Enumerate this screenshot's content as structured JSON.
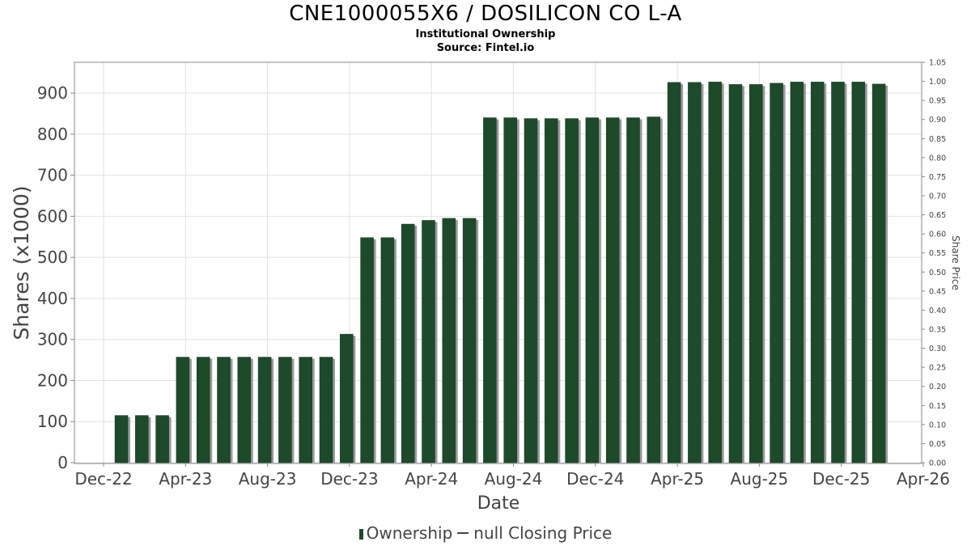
{
  "header": {
    "title": "CNE1000055X6 / DOSILICON CO L-A",
    "subtitle": "Institutional Ownership",
    "source": "Source: Fintel.io"
  },
  "legend": {
    "ownership_label": "Ownership",
    "price_label": "null Closing Price"
  },
  "chart_data": {
    "type": "bar",
    "title": "CNE1000055X6 / DOSILICON CO L-A",
    "xlabel": "Date",
    "ylabel": "Shares (x1000)",
    "y2label": "Share Price",
    "ylim": [
      0,
      975
    ],
    "y2lim": [
      0,
      1.05
    ],
    "yticks": [
      "0",
      "100",
      "200",
      "300",
      "400",
      "500",
      "600",
      "700",
      "800",
      "900"
    ],
    "y2ticks": [
      "0.00",
      "0.05",
      "0.10",
      "0.15",
      "0.20",
      "0.25",
      "0.30",
      "0.35",
      "0.40",
      "0.45",
      "0.50",
      "0.55",
      "0.60",
      "0.65",
      "0.70",
      "0.75",
      "0.80",
      "0.85",
      "0.90",
      "0.95",
      "1.00",
      "1.05"
    ],
    "xticks": [
      "Dec-22",
      "Apr-23",
      "Aug-23",
      "Dec-23",
      "Apr-24",
      "Aug-24",
      "Dec-24",
      "Apr-25",
      "Aug-25",
      "Dec-25",
      "Apr-26"
    ],
    "grid": true,
    "legend_position": "bottom",
    "bar_color": "#1d4a2a",
    "series": [
      {
        "name": "Ownership",
        "values": [
          115,
          115,
          115,
          257,
          257,
          257,
          257,
          257,
          257,
          257,
          257,
          313,
          548,
          548,
          581,
          590,
          595,
          595,
          840,
          840,
          838,
          838,
          838,
          840,
          840,
          840,
          842,
          926,
          926,
          927,
          921,
          921,
          924,
          927,
          927,
          927,
          927,
          922
        ]
      }
    ]
  }
}
